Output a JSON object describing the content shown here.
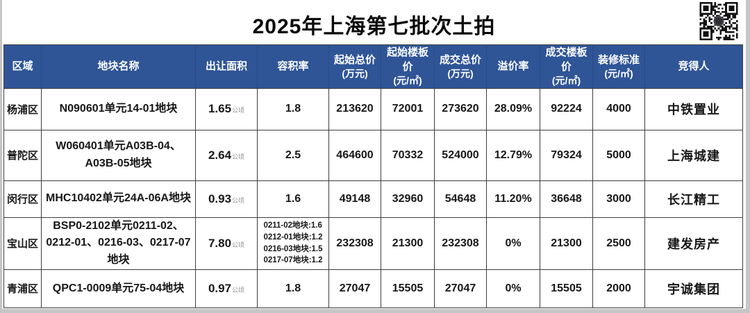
{
  "chart_data": {
    "type": "table",
    "title": "2025年上海第七批次土拍",
    "area_unit": "公顷",
    "headers": [
      {
        "line1": "区域"
      },
      {
        "line1": "地块名称"
      },
      {
        "line1": "出让面积"
      },
      {
        "line1": "容积率"
      },
      {
        "line1": "起始总价",
        "line2": "(万元)"
      },
      {
        "line1": "起始楼板价",
        "line2": "(元/㎡)"
      },
      {
        "line1": "成交总价",
        "line2": "(万元)"
      },
      {
        "line1": "溢价率"
      },
      {
        "line1": "成交楼板价",
        "line2": "(元/㎡)"
      },
      {
        "line1": "装修标准",
        "line2": "(元/㎡)"
      },
      {
        "line1": "竞得人"
      }
    ],
    "rows": [
      {
        "region": "杨浦区",
        "plot_name": "N090601单元14-01地块",
        "area": "1.65",
        "ratio": "1.8",
        "start_total": "213620",
        "start_floor_price": "72001",
        "deal_total": "273620",
        "premium_rate": "28.09%",
        "deal_floor_price": "92224",
        "decoration_standard": "4000",
        "winner": "中铁置业"
      },
      {
        "region": "普陀区",
        "plot_name": "W060401单元A03B-04、A03B-05地块",
        "area": "2.64",
        "ratio": "2.5",
        "start_total": "464600",
        "start_floor_price": "70332",
        "deal_total": "524000",
        "premium_rate": "12.79%",
        "deal_floor_price": "79324",
        "decoration_standard": "5000",
        "winner": "上海城建"
      },
      {
        "region": "闵行区",
        "plot_name": "MHC10402单元24A-06A地块",
        "area": "0.93",
        "ratio": "1.6",
        "start_total": "49148",
        "start_floor_price": "32960",
        "deal_total": "54648",
        "premium_rate": "11.20%",
        "deal_floor_price": "36648",
        "decoration_standard": "3000",
        "winner": "长江精工"
      },
      {
        "region": "宝山区",
        "plot_name": "BSP0-2102单元0211-02、0212-01、0216-03、0217-07地块",
        "area": "7.80",
        "ratio_lines": [
          "0211-02地块:1.6",
          "0212-01地块:1.2",
          "0216-03地块:1.5",
          "0217-07地块:1.2"
        ],
        "start_total": "232308",
        "start_floor_price": "21300",
        "deal_total": "232308",
        "premium_rate": "0%",
        "deal_floor_price": "21300",
        "decoration_standard": "2500",
        "winner": "建发房产"
      },
      {
        "region": "青浦区",
        "plot_name": "QPC1-0009单元75-04地块",
        "area": "0.97",
        "ratio": "1.8",
        "start_total": "27047",
        "start_floor_price": "15505",
        "deal_total": "27047",
        "premium_rate": "0%",
        "deal_floor_price": "15505",
        "decoration_standard": "2000",
        "winner": "宇诚集团"
      }
    ],
    "colors": {
      "header_bg": "#2F5597",
      "title_text": "#0a0a0a",
      "grid_line": "#3d3d3d",
      "area_unit_text": "#8f8f8f"
    }
  }
}
